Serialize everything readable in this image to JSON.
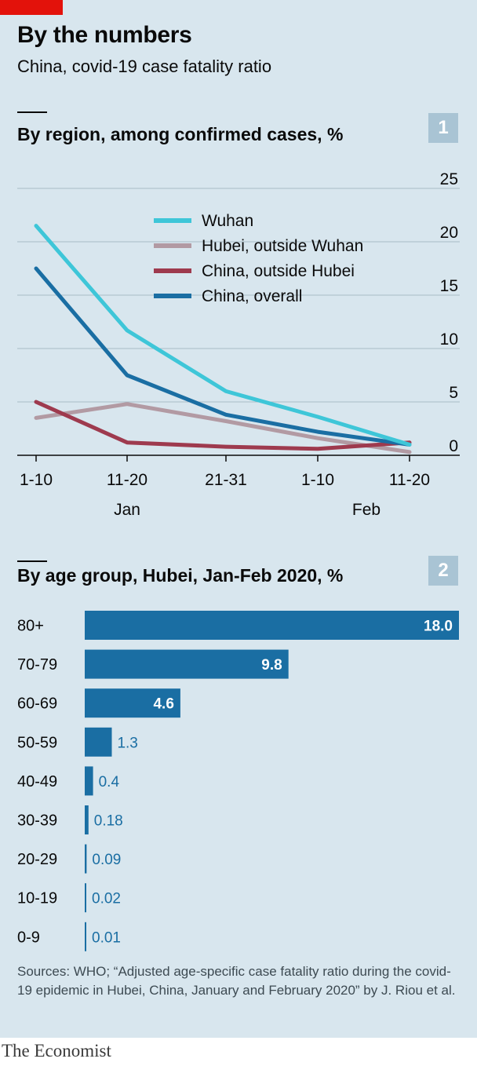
{
  "header": {
    "title": "By the numbers",
    "subtitle": "China, covid-19 case fatality ratio"
  },
  "chart_data": [
    {
      "type": "line",
      "title": "By region, among confirmed cases, %",
      "panel_number": "1",
      "x": [
        "1-10",
        "11-20",
        "21-31",
        "1-10",
        "11-20"
      ],
      "x_month_labels": [
        "Jan",
        "Feb"
      ],
      "ylim": [
        0,
        25
      ],
      "y_ticks": [
        0,
        5,
        10,
        15,
        20,
        25
      ],
      "grid": true,
      "legend_placement": "top-center",
      "series": [
        {
          "name": "Wuhan",
          "color": "#3ec6d8",
          "values": [
            21.5,
            11.7,
            6.0,
            3.6,
            1.0
          ]
        },
        {
          "name": "Hubei, outside Wuhan",
          "color": "#b29aa3",
          "values": [
            3.5,
            4.8,
            3.2,
            1.6,
            0.3
          ]
        },
        {
          "name": "China, outside Hubei",
          "color": "#9e3a4e",
          "values": [
            5.0,
            1.2,
            0.8,
            0.6,
            1.2
          ]
        },
        {
          "name": "China, overall",
          "color": "#1a6ea3",
          "values": [
            17.5,
            7.5,
            3.8,
            2.2,
            1.0
          ]
        }
      ]
    },
    {
      "type": "bar",
      "title": "By age group, Hubei, Jan-Feb 2020, %",
      "panel_number": "2",
      "orientation": "horizontal",
      "color": "#1a6ea3",
      "categories": [
        "80+",
        "70-79",
        "60-69",
        "50-59",
        "40-49",
        "30-39",
        "20-29",
        "10-19",
        "0-9"
      ],
      "values": [
        18.0,
        9.8,
        4.6,
        1.3,
        0.4,
        0.18,
        0.09,
        0.02,
        0.01
      ],
      "value_labels": [
        "18.0",
        "9.8",
        "4.6",
        "1.3",
        "0.4",
        "0.18",
        "0.09",
        "0.02",
        "0.01"
      ],
      "xlim": [
        0,
        18
      ]
    }
  ],
  "footer": {
    "sources": "Sources: WHO; “Adjusted age-specific case fatality ratio during the covid-19 epidemic in Hubei, China, January and February 2020” by J. Riou et al.",
    "brand": "The Economist"
  }
}
